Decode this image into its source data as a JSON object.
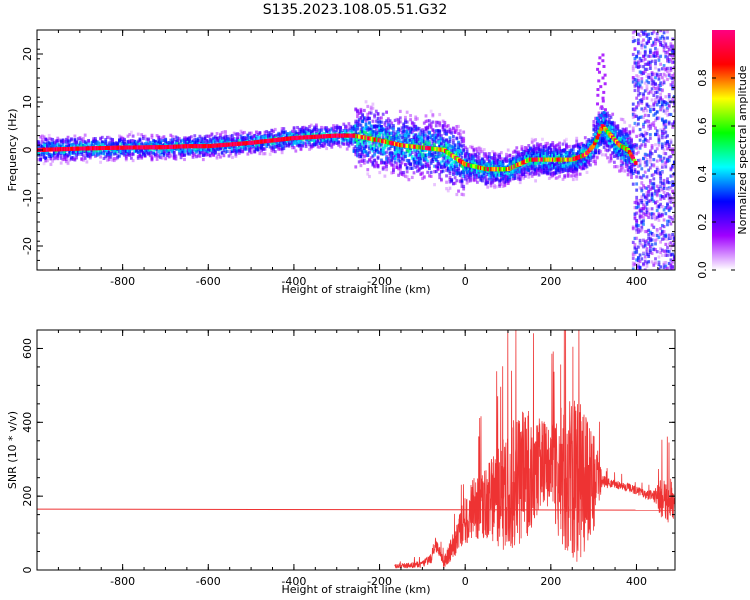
{
  "title": "S135.2023.108.05.51.G32",
  "chart_data": [
    {
      "type": "heatmap",
      "xlabel": "Height of straight line (km)",
      "ylabel": "Frequency (Hz)",
      "xlim": [
        -1000,
        490
      ],
      "ylim": [
        -25,
        25
      ],
      "xticks": [
        -800,
        -600,
        -400,
        -200,
        0,
        200,
        400
      ],
      "yticks": [
        -20,
        -10,
        0,
        10,
        20
      ],
      "colorbar": {
        "label": "Normalized spectral amplitude",
        "range": [
          0,
          1
        ],
        "ticks": [
          "0.0",
          "0.2",
          "0.4",
          "0.6",
          "0.8"
        ],
        "colormap": [
          "#ffffff",
          "#a000ff",
          "#0000ff",
          "#00ffff",
          "#00ff00",
          "#ffff00",
          "#ff0000",
          "#ff0080"
        ]
      },
      "ridge": {
        "x": [
          -1000,
          -900,
          -800,
          -700,
          -650,
          -600,
          -500,
          -400,
          -300,
          -260,
          -200,
          -150,
          -100,
          -50,
          0,
          50,
          100,
          150,
          200,
          250,
          280,
          300,
          320,
          340,
          360,
          380,
          400
        ],
        "y": [
          0,
          0.3,
          0.5,
          0.6,
          0.8,
          0.8,
          1.5,
          2.5,
          3,
          3,
          2,
          1,
          0.5,
          0,
          -3,
          -4,
          -4,
          -2,
          -2,
          -2,
          -1,
          1,
          5,
          3,
          1,
          0,
          -3
        ]
      },
      "grid": false
    },
    {
      "type": "line",
      "xlabel": "Height of straight line (km)",
      "ylabel": "SNR (10 * v/v)",
      "xlim": [
        -1000,
        490
      ],
      "ylim": [
        0,
        650
      ],
      "xticks": [
        -800,
        -600,
        -400,
        -200,
        0,
        200,
        400
      ],
      "yticks": [
        0,
        200,
        400,
        600
      ],
      "series": [
        {
          "color": "#ee3333",
          "style": "noisy",
          "x": [
            -165,
            -100,
            -80,
            -70,
            -60,
            -50,
            -40,
            -30,
            -20,
            -10,
            0,
            20,
            50,
            80,
            100,
            120,
            140,
            160,
            180,
            200,
            220,
            240,
            260,
            280,
            300,
            320,
            340,
            360,
            380,
            400,
            420,
            440,
            460,
            480,
            490
          ],
          "y": [
            10,
            15,
            30,
            70,
            50,
            20,
            40,
            60,
            80,
            110,
            140,
            165,
            185,
            200,
            215,
            250,
            260,
            270,
            285,
            280,
            260,
            250,
            250,
            245,
            245,
            240,
            235,
            230,
            225,
            215,
            205,
            200,
            195,
            185,
            200
          ],
          "amp": [
            5,
            10,
            15,
            20,
            15,
            15,
            25,
            35,
            45,
            55,
            70,
            85,
            100,
            140,
            170,
            190,
            180,
            150,
            120,
            110,
            180,
            220,
            230,
            200,
            150,
            20,
            12,
            12,
            12,
            12,
            12,
            15,
            60,
            70,
            50
          ]
        },
        {
          "color": "#ee3333",
          "style": "line",
          "x": [
            -1000,
            490
          ],
          "y": [
            165,
            162
          ]
        }
      ],
      "grid": false
    }
  ]
}
